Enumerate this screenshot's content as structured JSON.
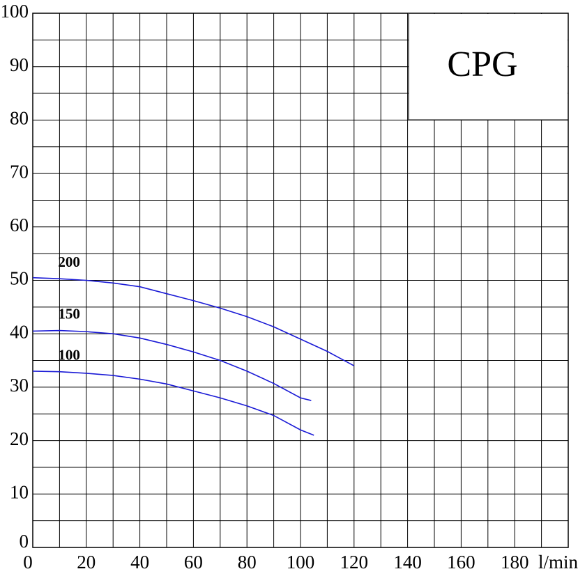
{
  "chart_data": {
    "type": "line",
    "title": "CPG",
    "x_label": "l/min",
    "xlim": [
      0,
      200
    ],
    "ylim": [
      0,
      100
    ],
    "xticks": [
      0,
      {
        "value": 10,
        "label": null
      },
      20,
      {
        "value": 30,
        "label": null
      },
      40,
      {
        "value": 50,
        "label": null
      },
      60,
      {
        "value": 70,
        "label": null
      },
      80,
      {
        "value": 90,
        "label": null
      },
      100,
      {
        "value": 110,
        "label": null
      },
      120,
      {
        "value": 130,
        "label": null
      },
      140,
      {
        "value": 150,
        "label": null
      },
      160,
      {
        "value": 170,
        "label": null
      },
      180,
      {
        "value": 190,
        "label": null
      },
      {
        "value": 200,
        "label": null
      }
    ],
    "yticks": [
      0,
      {
        "value": 5,
        "label": null
      },
      10,
      {
        "value": 15,
        "label": null
      },
      20,
      {
        "value": 25,
        "label": null
      },
      30,
      {
        "value": 35,
        "label": null
      },
      40,
      {
        "value": 45,
        "label": null
      },
      50,
      {
        "value": 55,
        "label": null
      },
      60,
      {
        "value": 65,
        "label": null
      },
      70,
      {
        "value": 75,
        "label": null
      },
      80,
      {
        "value": 85,
        "label": null
      },
      90,
      {
        "value": 95,
        "label": null
      },
      100
    ],
    "grid": true,
    "series": [
      {
        "name": "200",
        "color": "#1a1ad6",
        "x": [
          0,
          10,
          20,
          30,
          40,
          50,
          60,
          70,
          80,
          90,
          100,
          110,
          120
        ],
        "values": [
          50.5,
          50.3,
          50,
          49.5,
          48.8,
          47.5,
          46.2,
          44.8,
          43.2,
          41.3,
          39,
          36.7,
          34
        ]
      },
      {
        "name": "150",
        "color": "#1a1ad6",
        "x": [
          0,
          10,
          20,
          30,
          40,
          50,
          60,
          70,
          80,
          90,
          100,
          104
        ],
        "values": [
          40.5,
          40.6,
          40.4,
          40,
          39.2,
          38,
          36.6,
          35,
          33,
          30.7,
          28,
          27.5
        ]
      },
      {
        "name": "100",
        "color": "#1a1ad6",
        "x": [
          0,
          10,
          20,
          30,
          40,
          50,
          60,
          70,
          80,
          90,
          100,
          105
        ],
        "values": [
          33,
          32.9,
          32.6,
          32.2,
          31.5,
          30.6,
          29.3,
          28,
          26.5,
          24.7,
          22,
          21
        ]
      }
    ]
  }
}
